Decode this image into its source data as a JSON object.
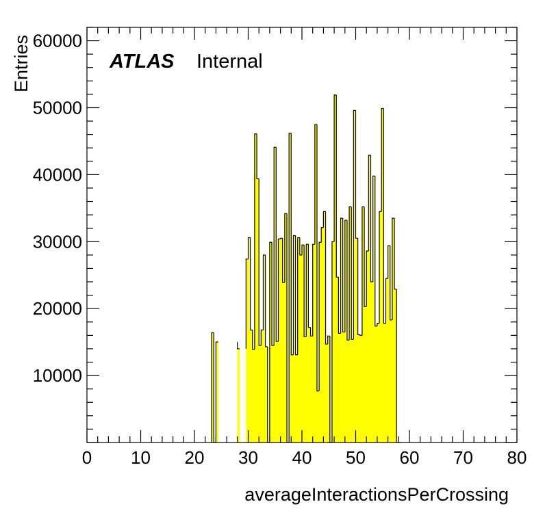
{
  "chart_data": {
    "type": "bar",
    "xlabel": "averageInteractionsPerCrossing",
    "ylabel": "Entries",
    "xlim": [
      0,
      80
    ],
    "ylim": [
      0,
      62000
    ],
    "bin_width": 0.4,
    "x_ticks": [
      0,
      10,
      20,
      30,
      40,
      50,
      60,
      70,
      80
    ],
    "y_ticks": [
      10000,
      20000,
      30000,
      40000,
      50000,
      60000
    ],
    "fill_color": "#ffff00",
    "line_color": "#000000",
    "grid": false,
    "annotation": {
      "bold": "ATLAS",
      "normal": "Internal"
    },
    "x": [
      23.2,
      23.6,
      24.0,
      28.0,
      29.6,
      30.0,
      30.4,
      30.8,
      31.2,
      31.6,
      32.0,
      32.4,
      32.8,
      33.2,
      33.6,
      34.0,
      34.4,
      34.8,
      35.2,
      35.6,
      36.0,
      36.4,
      36.8,
      37.2,
      37.6,
      38.0,
      38.4,
      38.8,
      39.2,
      39.6,
      40.0,
      40.4,
      40.8,
      41.2,
      41.6,
      42.0,
      42.4,
      42.8,
      43.2,
      43.6,
      44.0,
      44.4,
      44.8,
      45.2,
      45.6,
      46.0,
      46.4,
      46.8,
      47.2,
      47.6,
      48.0,
      48.4,
      48.8,
      49.2,
      49.6,
      50.0,
      50.4,
      50.8,
      51.2,
      51.6,
      52.0,
      52.4,
      52.8,
      53.2,
      53.6,
      54.0,
      54.4,
      54.8,
      55.2,
      55.6,
      56.0,
      56.4,
      56.8,
      57.2,
      57.6,
      58.0
    ],
    "values": [
      16400,
      0,
      15000,
      14000,
      27400,
      30600,
      16800,
      13900,
      46100,
      39400,
      14500,
      16800,
      28000,
      14300,
      0,
      29900,
      14500,
      44100,
      15100,
      30400,
      30500,
      23900,
      34200,
      0,
      46200,
      13100,
      30900,
      13100,
      30600,
      28000,
      29500,
      15800,
      29600,
      17200,
      15900,
      29600,
      47500,
      7700,
      29900,
      32100,
      34500,
      14700,
      15900,
      0,
      30000,
      51900,
      24700,
      16300,
      33500,
      16500,
      33200,
      15300,
      35200,
      15400,
      49600,
      30500,
      16100,
      16000,
      35200,
      20300,
      28600,
      42900,
      24000,
      39800,
      17400,
      17800,
      34500,
      49900,
      17800,
      24500,
      29400,
      18300,
      33500,
      22900,
      0,
      0
    ]
  }
}
